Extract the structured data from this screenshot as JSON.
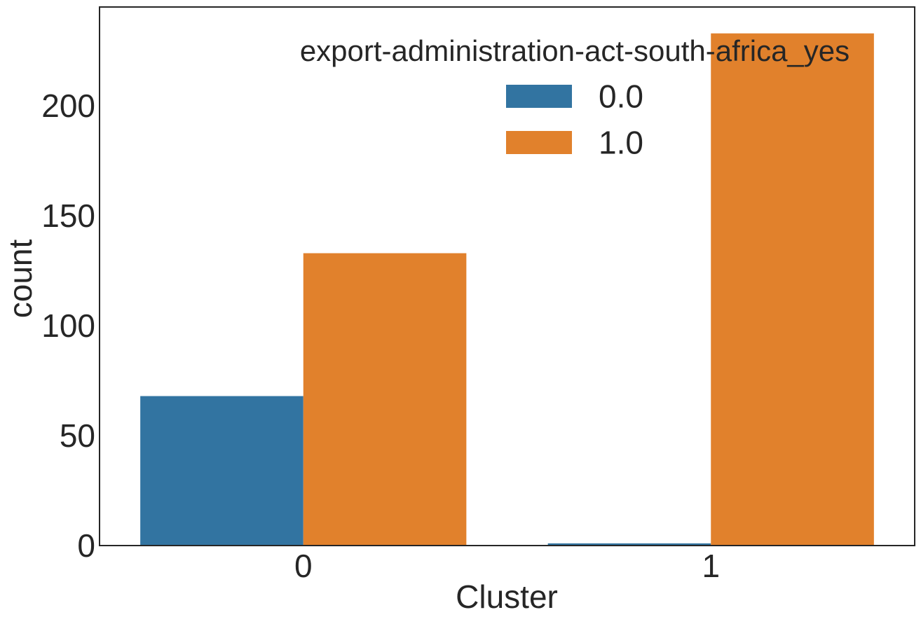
{
  "chart_data": {
    "type": "bar",
    "categories": [
      "0",
      "1"
    ],
    "series": [
      {
        "name": "0.0",
        "color": "#3274a1",
        "values": [
          68,
          1
        ]
      },
      {
        "name": "1.0",
        "color": "#e1812c",
        "values": [
          133,
          233
        ]
      }
    ],
    "xlabel": "Cluster",
    "ylabel": "count",
    "ylim": [
      0,
      245
    ],
    "yticks": [
      0,
      50,
      100,
      150,
      200
    ],
    "legend": {
      "title": "export-administration-act-south-africa_yes",
      "placement": "top-right"
    },
    "grid": false
  }
}
